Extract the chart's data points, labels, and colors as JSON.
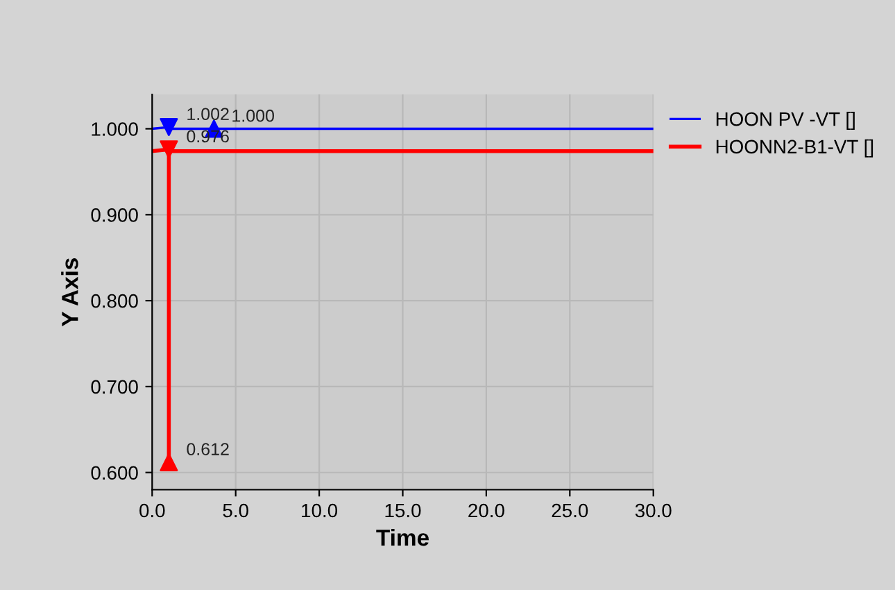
{
  "chart_data": {
    "type": "line",
    "xlabel": "Time",
    "ylabel": "Y Axis",
    "xlim": [
      0,
      30
    ],
    "xticks": [
      {
        "value": 0,
        "label": "0.0"
      },
      {
        "value": 5,
        "label": "5.0"
      },
      {
        "value": 10,
        "label": "10.0"
      },
      {
        "value": 15,
        "label": "15.0"
      },
      {
        "value": 20,
        "label": "20.0"
      },
      {
        "value": 25,
        "label": "25.0"
      },
      {
        "value": 30,
        "label": "30.0"
      }
    ],
    "ylim": [
      0.58,
      1.04
    ],
    "yticks": [
      {
        "value": 0.6,
        "label": "0.600"
      },
      {
        "value": 0.7,
        "label": "0.700"
      },
      {
        "value": 0.8,
        "label": "0.800"
      },
      {
        "value": 0.9,
        "label": "0.900"
      },
      {
        "value": 1.0,
        "label": "1.000"
      }
    ],
    "grid": true,
    "legend": "top right",
    "series": [
      {
        "name": "HOON PV -VT []",
        "color": "#0000ff",
        "x": [
          0,
          1,
          1,
          30
        ],
        "values": [
          1.0,
          1.002,
          1.0,
          1.0
        ]
      },
      {
        "name": "HOONN2-B1-VT []",
        "color": "#ff0000",
        "x": [
          0,
          1,
          1,
          1,
          30
        ],
        "values": [
          0.974,
          0.976,
          0.612,
          0.974,
          0.974
        ]
      },
      {
        "type": "scatter",
        "marker": "triangle_down",
        "color": "#0000ff",
        "x": [
          1
        ],
        "values": [
          1.002
        ],
        "value_labels": [
          "1.002"
        ]
      },
      {
        "type": "scatter",
        "marker": "triangle",
        "color": "#0000ff",
        "x": [
          3.7
        ],
        "values": [
          1.0
        ],
        "value_labels": [
          "1.000"
        ]
      },
      {
        "type": "scatter",
        "marker": "triangle_down",
        "color": "#ff0000",
        "x": [
          1
        ],
        "values": [
          0.976
        ],
        "value_labels": [
          "0.976"
        ]
      },
      {
        "type": "scatter",
        "marker": "triangle",
        "color": "#ff0000",
        "x": [
          1
        ],
        "values": [
          0.612
        ],
        "value_labels": [
          "0.612"
        ]
      }
    ]
  }
}
